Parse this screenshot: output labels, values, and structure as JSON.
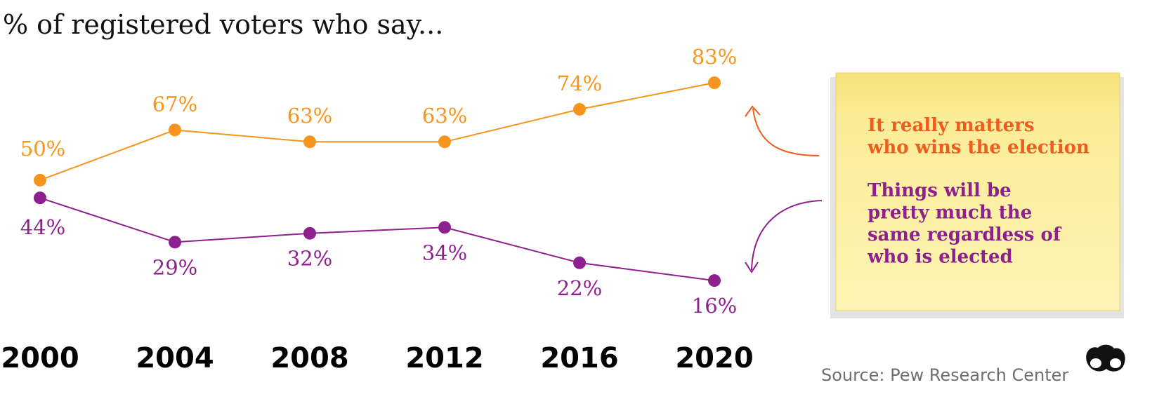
{
  "chart_data": {
    "type": "line",
    "title": "% of registered voters who say...",
    "categories": [
      "2000",
      "2004",
      "2008",
      "2012",
      "2016",
      "2020"
    ],
    "series": [
      {
        "name": "It really matters who wins the election",
        "values": [
          50,
          67,
          63,
          63,
          74,
          83
        ],
        "labels": [
          "50%",
          "67%",
          "63%",
          "63%",
          "74%",
          "83%"
        ],
        "color": "#f7941d"
      },
      {
        "name": "Things will be pretty much the same regardless of who is elected",
        "values": [
          44,
          29,
          32,
          34,
          22,
          16
        ],
        "labels": [
          "44%",
          "29%",
          "32%",
          "34%",
          "22%",
          "16%"
        ],
        "color": "#8e1f8e"
      }
    ],
    "ylim": [
      10,
      90
    ],
    "grid": false,
    "legend_position": "right",
    "note_lines": [
      [
        "It really matters",
        "who wins the election"
      ],
      [
        "Things will be",
        "pretty much the",
        "same regardless of",
        "who is elected"
      ]
    ]
  },
  "source": "Source: Pew Research Center",
  "colors": {
    "note_background": "#fcef9c",
    "orange_text": "#ec5d1e",
    "purple_text": "#8e1f8e"
  },
  "logo": "binoculars-icon"
}
